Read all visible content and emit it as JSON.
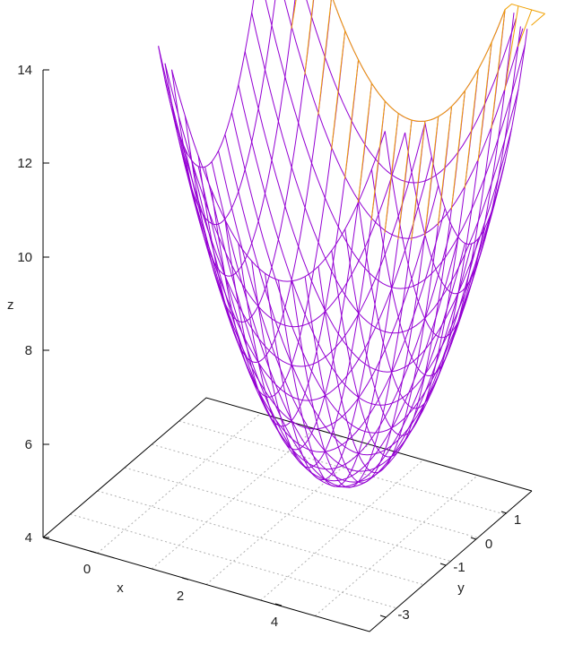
{
  "chart_data": {
    "type": "surface",
    "title": "",
    "xlabel": "x",
    "ylabel": "y",
    "zlabel": "z",
    "zlim": [
      4,
      14
    ],
    "z_ticks": [
      "4",
      "6",
      "8",
      "10",
      "12",
      "14"
    ],
    "x_ticks": [
      "0",
      "2",
      "4"
    ],
    "y_ticks": [
      "-3",
      "-1",
      "0",
      "1"
    ],
    "surface": {
      "description_formula": "z = (x-3)^2 + (y+1)^2 + 5 (approx)",
      "z_min": 5,
      "front_color": "#9400d3",
      "back_color": "#f0a000"
    },
    "grid": true
  }
}
